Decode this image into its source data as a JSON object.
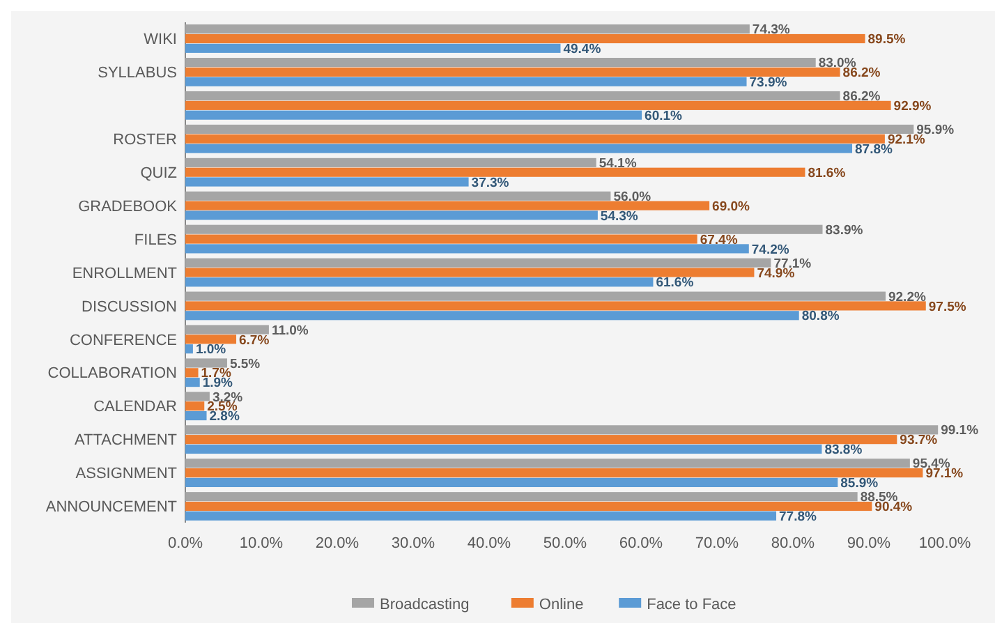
{
  "chart_data": {
    "type": "bar",
    "orientation": "horizontal",
    "categories": [
      "WIKI",
      "SYLLABUS",
      null,
      "ROSTER",
      "QUIZ",
      "GRADEBOOK",
      "FILES",
      "ENROLLMENT",
      "DISCUSSION",
      "CONFERENCE",
      "COLLABORATION",
      "CALENDAR",
      "ATTACHMENT",
      "ASSIGNMENT",
      "ANNOUNCEMENT"
    ],
    "series": [
      {
        "name": "Broadcasting",
        "color": "#a5a5a5",
        "values": [
          74.3,
          83.0,
          86.2,
          95.9,
          54.1,
          56.0,
          83.9,
          77.1,
          92.2,
          11.0,
          5.5,
          3.2,
          99.1,
          95.4,
          88.5
        ],
        "value_labels": [
          "74.3%",
          "83.0%",
          "86.2%",
          "95.9%",
          "54.1%",
          "56.0%",
          "83.9%",
          "77.1%",
          "92.2%",
          "11.0%",
          "5.5%",
          "3.2%",
          "99.1%",
          "95.4%",
          "88.5%"
        ]
      },
      {
        "name": "Online",
        "color": "#ed7d31",
        "values": [
          89.5,
          86.2,
          92.9,
          92.1,
          81.6,
          69.0,
          67.4,
          74.9,
          97.5,
          6.7,
          1.7,
          2.5,
          93.7,
          97.1,
          90.4
        ],
        "value_labels": [
          "89.5%",
          "86.2%",
          "92.9%",
          "92.1%",
          "81.6%",
          "69.0%",
          "67.4%",
          "74.9%",
          "97.5%",
          "6.7%",
          "1.7%",
          "2.5%",
          "93.7%",
          "97.1%",
          "90.4%"
        ]
      },
      {
        "name": "Face to Face",
        "color": "#5b9bd5",
        "values": [
          49.4,
          73.9,
          60.1,
          87.8,
          37.3,
          54.3,
          74.2,
          61.6,
          80.8,
          1.0,
          1.9,
          2.8,
          83.8,
          85.9,
          77.8
        ],
        "value_labels": [
          "49.4%",
          "73.9%",
          "60.1%",
          "87.8%",
          "37.3%",
          "54.3%",
          "74.2%",
          "61.6%",
          "80.8%",
          "1.0%",
          "1.9%",
          "2.8%",
          "83.8%",
          "85.9%",
          "77.8%"
        ]
      }
    ],
    "xlim": [
      0,
      100
    ],
    "xticks": [
      {
        "value": 0,
        "label": "0.0%"
      },
      {
        "value": 10,
        "label": "10.0%"
      },
      {
        "value": 20,
        "label": "20.0%"
      },
      {
        "value": 30,
        "label": "30.0%"
      },
      {
        "value": 40,
        "label": "40.0%"
      },
      {
        "value": 50,
        "label": "50.0%"
      },
      {
        "value": 60,
        "label": "60.0%"
      },
      {
        "value": 70,
        "label": "70.0%"
      },
      {
        "value": 80,
        "label": "80.0%"
      },
      {
        "value": 90,
        "label": "90.0%"
      },
      {
        "value": 100,
        "label": "100.0%"
      }
    ],
    "grid": false,
    "legend": "bottom"
  }
}
